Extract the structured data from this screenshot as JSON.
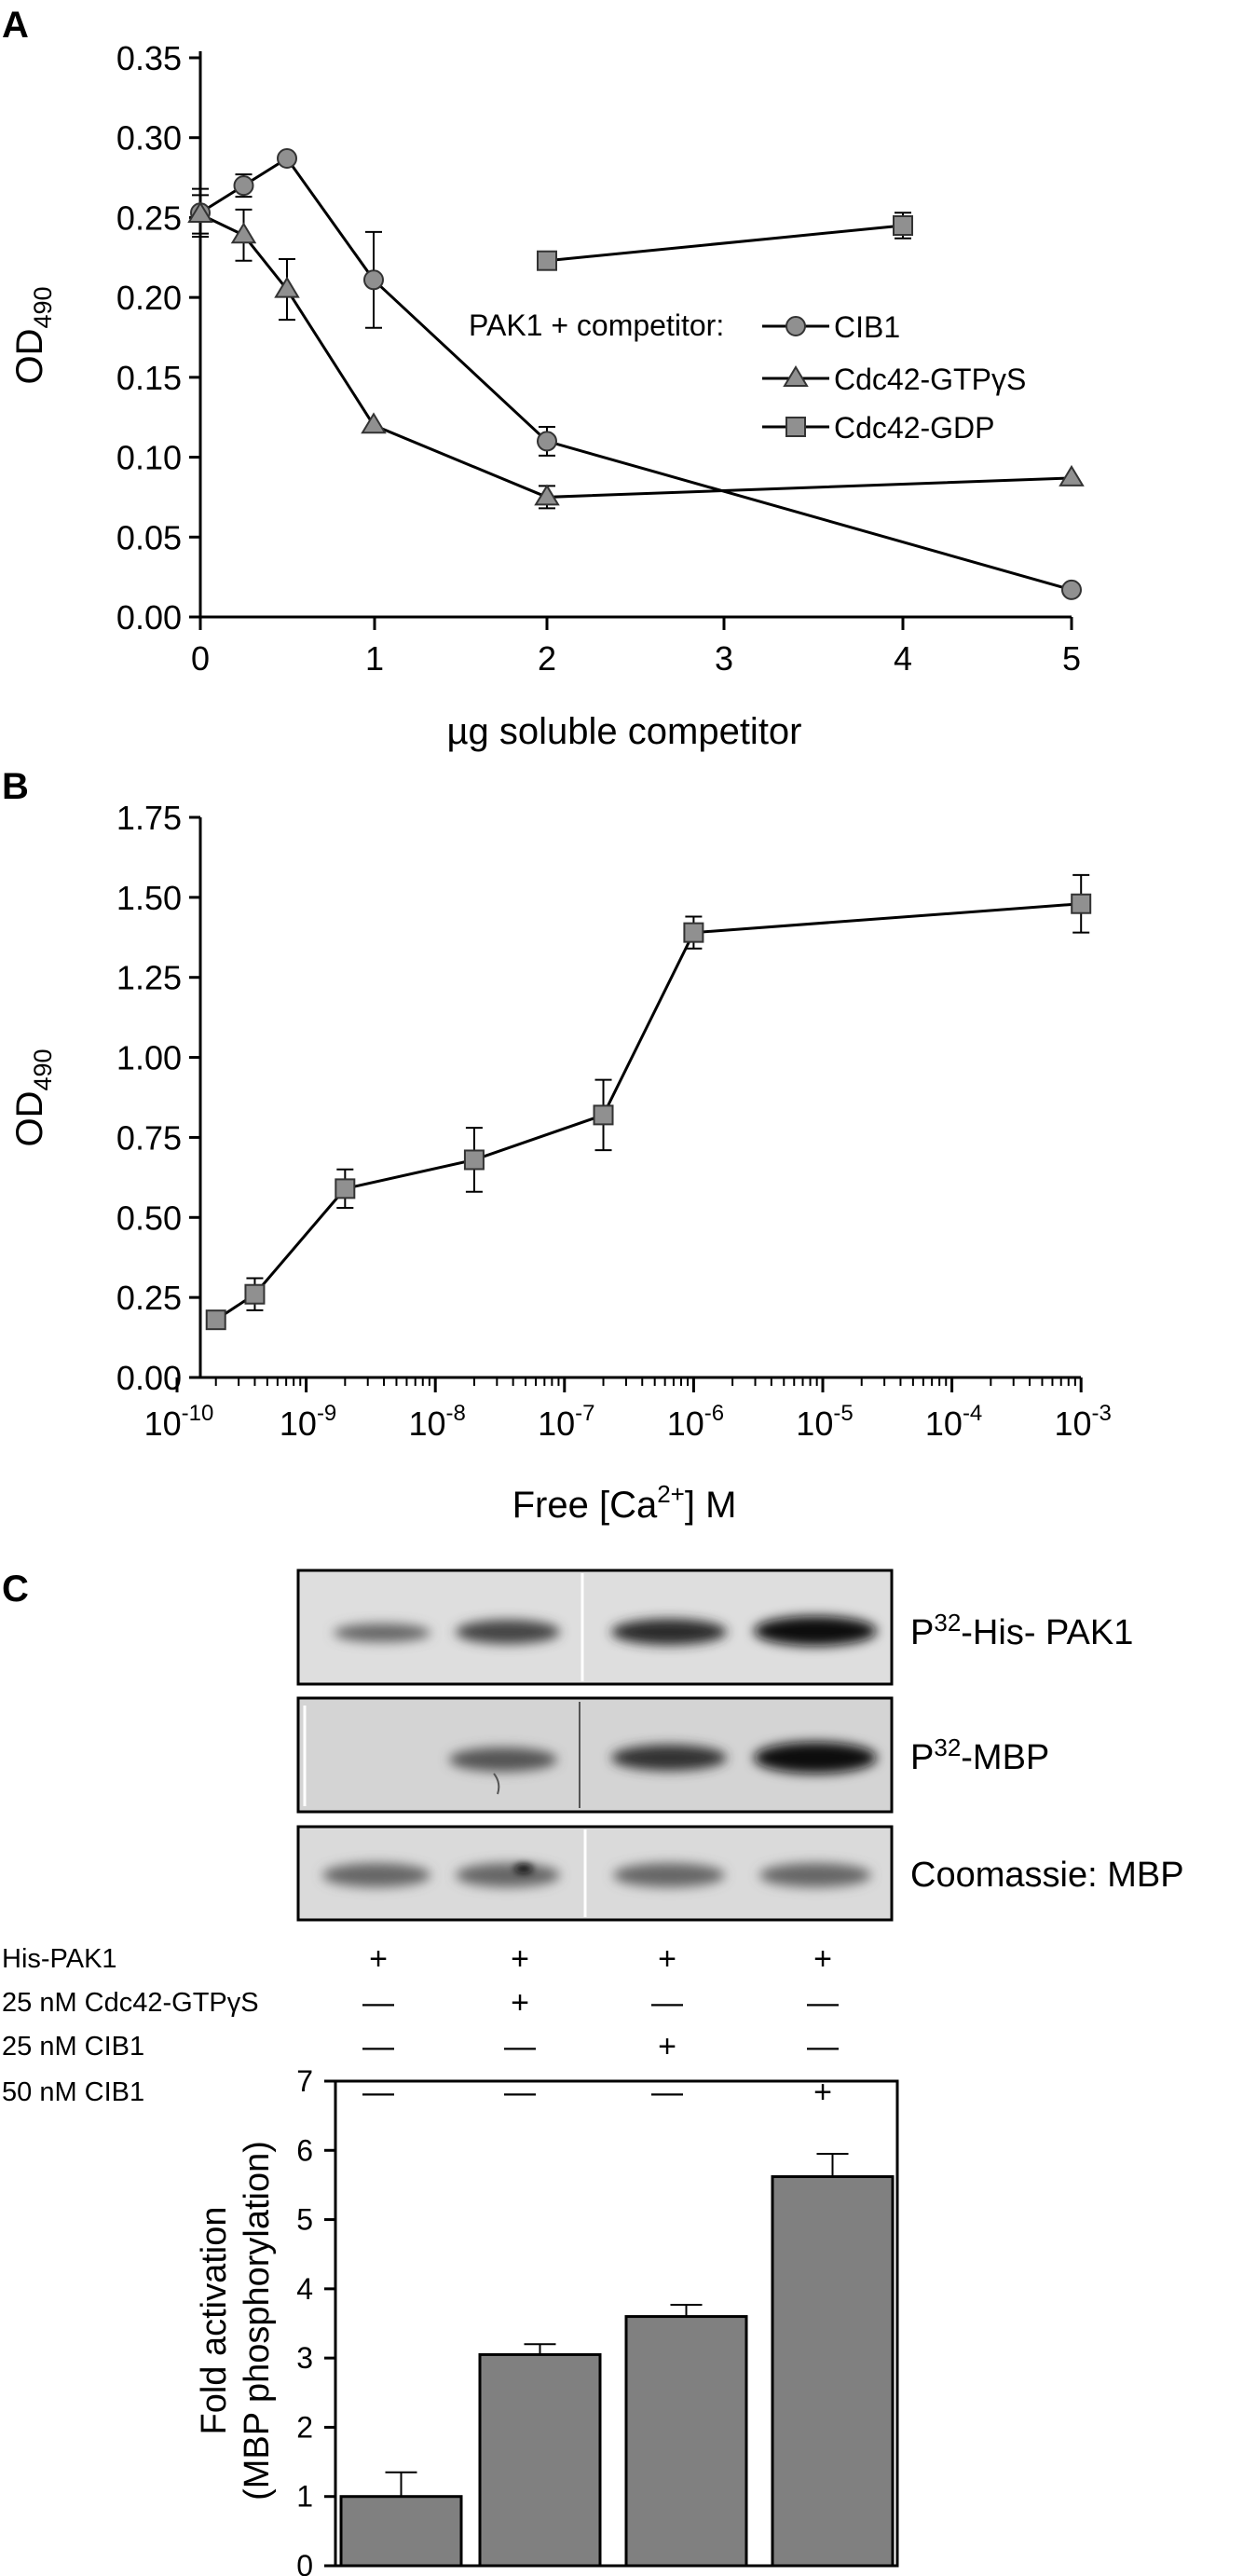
{
  "panels": {
    "a": "A",
    "b": "B",
    "c": "C"
  },
  "colors": {
    "marker_fill": "#909090",
    "bar_fill": "#808080",
    "line": "#000000"
  },
  "chart_data": [
    {
      "type": "line",
      "panel": "A",
      "xlabel": "µg soluble competitor",
      "ylabel": "OD",
      "ylabel_sub": "490",
      "x_ticks": [
        "0",
        "1",
        "2",
        "3",
        "4",
        "5"
      ],
      "y_ticks": [
        "0.00",
        "0.05",
        "0.10",
        "0.15",
        "0.20",
        "0.25",
        "0.30",
        "0.35"
      ],
      "xlim": [
        0,
        5
      ],
      "ylim": [
        0,
        0.35
      ],
      "x_scale": "broken: 0-2 linear, 2-4 linear, 4-5 linear (non-uniform spacing)",
      "legend_title": "PAK1 + competitor:",
      "legend_position": "center-right",
      "series": [
        {
          "name": "CIB1",
          "marker": "circle",
          "x": [
            0,
            0.25,
            0.5,
            1,
            2,
            5
          ],
          "y": [
            0.253,
            0.27,
            0.287,
            0.211,
            0.11,
            0.017
          ],
          "err": [
            0.015,
            0.007,
            0,
            0.03,
            0.009,
            0
          ]
        },
        {
          "name": "Cdc42-GTPγS",
          "marker": "triangle",
          "x": [
            0,
            0.25,
            0.5,
            1,
            2,
            5
          ],
          "y": [
            0.252,
            0.239,
            0.205,
            0.12,
            0.075,
            0.087
          ],
          "err": [
            0.012,
            0.016,
            0.019,
            0,
            0.007,
            0
          ]
        },
        {
          "name": "Cdc42-GDP",
          "marker": "square",
          "x": [
            2,
            4
          ],
          "y": [
            0.223,
            0.245
          ],
          "err": [
            0,
            0.008
          ]
        }
      ]
    },
    {
      "type": "line",
      "panel": "B",
      "xlabel": "Free [Ca",
      "xlabel_sup": "2+",
      "xlabel_end": "] M",
      "ylabel": "OD",
      "ylabel_sub": "490",
      "x_scale": "log",
      "x_ticks_exp": [
        "-10",
        "-9",
        "-8",
        "-7",
        "-6",
        "-5",
        "-4",
        "-3"
      ],
      "y_ticks": [
        "0.00",
        "0.25",
        "0.50",
        "0.75",
        "1.00",
        "1.25",
        "1.50",
        "1.75"
      ],
      "ylim": [
        0,
        1.75
      ],
      "series": [
        {
          "marker": "square",
          "x": [
            2e-10,
            4e-10,
            2e-09,
            2e-08,
            2e-07,
            1e-06,
            0.001
          ],
          "y": [
            0.18,
            0.26,
            0.59,
            0.68,
            0.82,
            1.39,
            1.48
          ],
          "err": [
            0,
            0.05,
            0.06,
            0.1,
            0.11,
            0.05,
            0.09
          ]
        }
      ]
    },
    {
      "type": "bar",
      "panel": "C",
      "ylabel_line1": "Fold activation",
      "ylabel_line2": "(MBP phosphorylation)",
      "y_ticks": [
        "0",
        "1",
        "2",
        "3",
        "4",
        "5",
        "6",
        "7"
      ],
      "ylim": [
        0,
        7
      ],
      "values": [
        1.0,
        3.05,
        3.6,
        5.62
      ],
      "err": [
        0.35,
        0.15,
        0.17,
        0.33
      ]
    }
  ],
  "blot": {
    "labels": {
      "his_pak1_pre": "P",
      "his_pak1_sup": "32",
      "his_pak1_post": "-His- PAK1",
      "mbp_pre": "P",
      "mbp_sup": "32",
      "mbp_post": "-MBP",
      "coomassie": "Coomassie: MBP"
    },
    "conditions": [
      {
        "label": "His-PAK1",
        "signs": [
          "+",
          "+",
          "+",
          "+"
        ]
      },
      {
        "label": "25 nM Cdc42-GTPγS",
        "signs": [
          "—",
          "+",
          "—",
          "—"
        ]
      },
      {
        "label": "25 nM CIB1",
        "signs": [
          "—",
          "—",
          "+",
          "—"
        ]
      },
      {
        "label": "50 nM CIB1",
        "signs": [
          "—",
          "—",
          "—",
          "+"
        ]
      }
    ]
  }
}
